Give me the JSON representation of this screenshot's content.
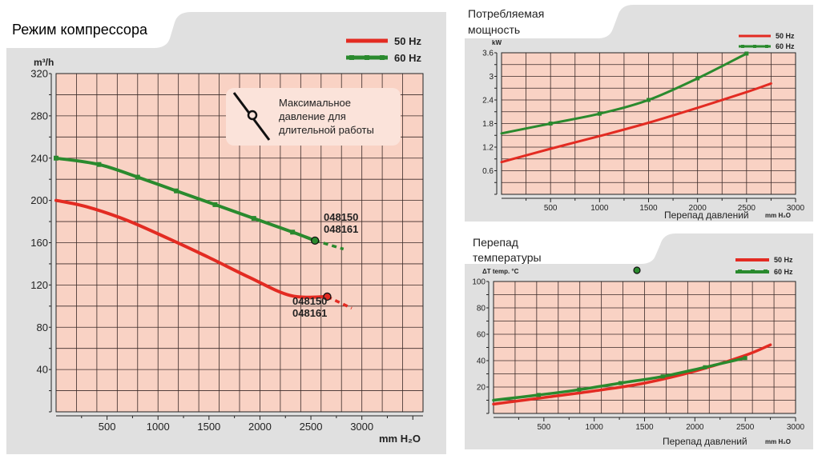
{
  "legend": {
    "hz50": "50 Hz",
    "hz60": "60 Hz"
  },
  "colors": {
    "hz50": "#e32b22",
    "hz60": "#2a8a2e",
    "plot_bg": "#f9d2c4",
    "grid": "#3a2a28",
    "panel": "#e0e0e0"
  },
  "chart_data": [
    {
      "id": "flow",
      "type": "line",
      "title": "Режим компрессора",
      "xlabel": "mm H₂O",
      "ylabel": "m³/h",
      "xlim": [
        0,
        3600
      ],
      "ylim": [
        0,
        320
      ],
      "x_ticks": [
        500,
        1000,
        1500,
        2000,
        2500,
        3000
      ],
      "y_ticks": [
        40,
        80,
        120,
        160,
        200,
        240,
        280,
        320
      ],
      "grid": true,
      "legend_position": "top-right",
      "annotation": {
        "text": [
          "Максимальное",
          "давление для",
          "длительной работы"
        ]
      },
      "model_labels": [
        {
          "lines": [
            "048150",
            "048161"
          ],
          "series": "60 Hz"
        },
        {
          "lines": [
            "048150",
            "048161"
          ],
          "series": "50 Hz"
        }
      ],
      "series": [
        {
          "name": "50 Hz",
          "x": [
            0,
            300,
            700,
            1100,
            1500,
            1900,
            2300,
            2660
          ],
          "y": [
            200,
            194,
            181,
            164,
            146,
            127,
            110,
            109
          ],
          "max_point": [
            2660,
            109
          ],
          "extension_x": [
            2660,
            2900
          ],
          "extension_y": [
            109,
            98
          ]
        },
        {
          "name": "60 Hz",
          "x": [
            0,
            420,
            800,
            1180,
            1560,
            1940,
            2320,
            2540
          ],
          "y": [
            240,
            234,
            222,
            209,
            196,
            183,
            170,
            162
          ],
          "max_point": [
            2540,
            162
          ],
          "extension_x": [
            2540,
            2820
          ],
          "extension_y": [
            162,
            154
          ]
        }
      ]
    },
    {
      "id": "power",
      "type": "line",
      "title": "Потребляемая мощность",
      "title_lines": [
        "Потребляемая",
        "мощность"
      ],
      "xlabel": "Перепад давлений",
      "xunit": "mm H₂O",
      "ylabel": "kW",
      "xlim": [
        0,
        3000
      ],
      "ylim": [
        0,
        3.6
      ],
      "x_ticks": [
        500,
        1000,
        1500,
        2000,
        2500,
        3000
      ],
      "y_ticks": [
        "0.6",
        "1.2",
        "1.8",
        "2.4",
        "3",
        "3.6"
      ],
      "grid": true,
      "legend_position": "top-right",
      "series": [
        {
          "name": "50 Hz",
          "x": [
            0,
            500,
            1000,
            1500,
            2000,
            2500,
            2750
          ],
          "y": [
            0.82,
            1.16,
            1.48,
            1.82,
            2.2,
            2.6,
            2.82
          ]
        },
        {
          "name": "60 Hz",
          "x": [
            0,
            500,
            1000,
            1500,
            2000,
            2500
          ],
          "y": [
            1.55,
            1.8,
            2.05,
            2.4,
            2.95,
            3.58
          ]
        }
      ]
    },
    {
      "id": "temp",
      "type": "line",
      "title": "Перепад температуры",
      "title_lines": [
        "Перепад",
        "температуры"
      ],
      "xlabel": "Перепад давлений",
      "xunit": "mm H₂O",
      "ylabel": "ΔT  temp. °C",
      "xlim": [
        0,
        3000
      ],
      "ylim": [
        0,
        100
      ],
      "x_ticks": [
        500,
        1000,
        1500,
        2000,
        2500,
        3000
      ],
      "y_ticks": [
        20,
        40,
        60,
        80,
        100
      ],
      "grid": true,
      "legend_position": "top-right",
      "series": [
        {
          "name": "50 Hz",
          "x": [
            0,
            500,
            1000,
            1500,
            2000,
            2500,
            2750
          ],
          "y": [
            7,
            12,
            17,
            23,
            32,
            44,
            52
          ]
        },
        {
          "name": "60 Hz",
          "x": [
            0,
            450,
            850,
            1260,
            1680,
            2100,
            2500
          ],
          "y": [
            10,
            14,
            18,
            23,
            28,
            35,
            42
          ]
        }
      ]
    }
  ]
}
